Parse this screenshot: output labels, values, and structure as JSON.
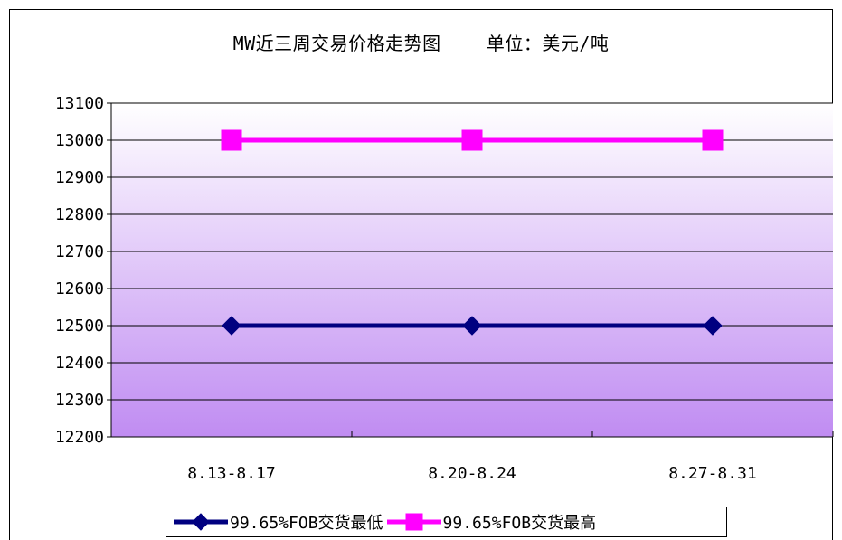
{
  "chart_data": {
    "type": "line",
    "title": "MW近三周交易价格走势图    单位：美元/吨",
    "categories": [
      "8.13-8.17",
      "8.20-8.24",
      "8.27-8.31"
    ],
    "series": [
      {
        "name": "99.65%FOB交货最低",
        "values": [
          12500,
          12500,
          12500
        ],
        "color": "#000080",
        "marker": "diamond"
      },
      {
        "name": "99.65%FOB交货最高",
        "values": [
          13000,
          13000,
          13000
        ],
        "color": "#ff00ff",
        "marker": "square"
      }
    ],
    "ylim": [
      12200,
      13100
    ],
    "yticks": [
      12200,
      12300,
      12400,
      12500,
      12600,
      12700,
      12800,
      12900,
      13000,
      13100
    ],
    "grid": true,
    "legend_position": "bottom",
    "plot_gradient": [
      "#ffffff",
      "#c08cf2"
    ]
  }
}
